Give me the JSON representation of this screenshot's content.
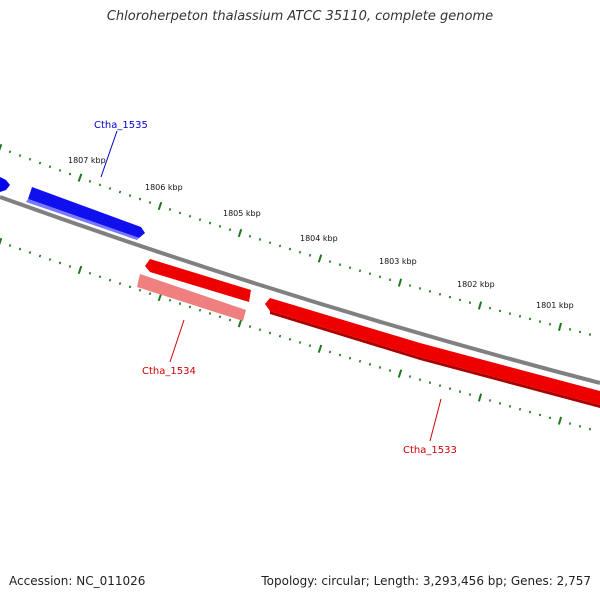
{
  "title": "Chloroherpeton thalassium ATCC 35110, complete genome",
  "accession_line": "Accession: NC_011026",
  "summary_line": "Topology: circular; Length: 3,293,456 bp; Genes: 2,757",
  "colors": {
    "backbone": "#808080",
    "forward_gene": "#0000ee",
    "reverse_gene": "#ee0000",
    "reverse_gene_light": "#f08080",
    "tick_marks": "#1a7a1a"
  },
  "scale_labels": [
    "1807 kbp",
    "1806 kbp",
    "1805 kbp",
    "1804 kbp",
    "1803 kbp",
    "1802 kbp",
    "1801 kbp"
  ],
  "genes": [
    {
      "name": "Ctha_1535",
      "strand": "forward"
    },
    {
      "name": "Ctha_1534",
      "strand": "reverse"
    },
    {
      "name": "Ctha_1533",
      "strand": "reverse"
    }
  ]
}
